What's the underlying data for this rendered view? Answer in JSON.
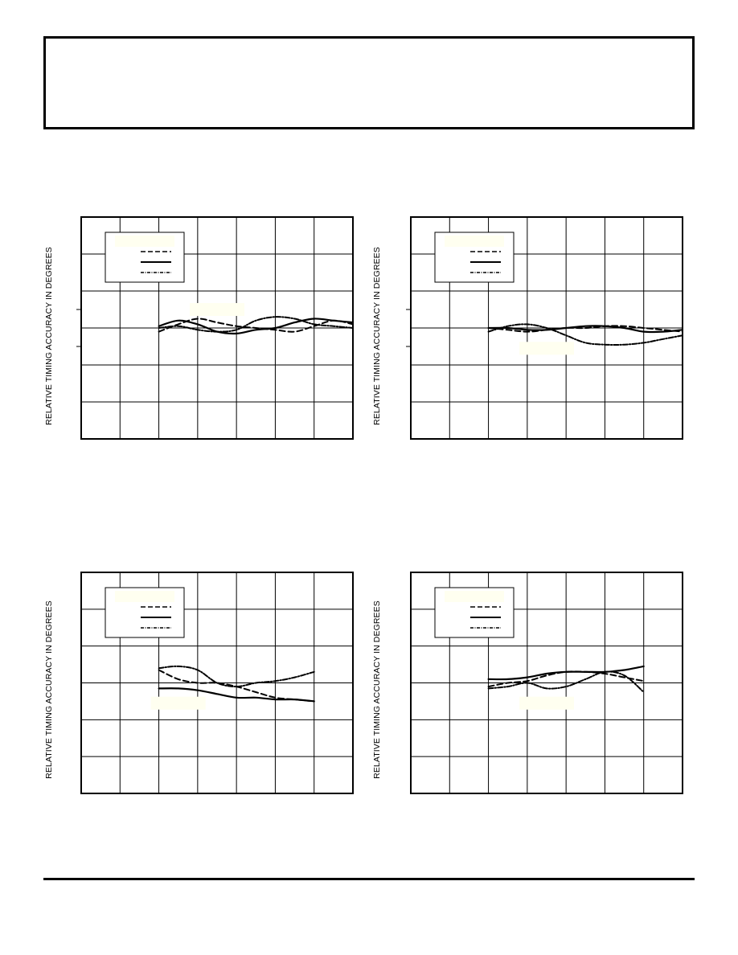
{
  "page": {
    "title_box": "",
    "footer": ""
  },
  "colors": {
    "ink": "#000000",
    "legend_fill": "#fffff0",
    "label_fill": "#fffff0"
  },
  "chart_data": [
    {
      "type": "line",
      "ylabel": "RELATIVE TIMING ACCURACY IN DEGREES",
      "grid": true,
      "legend_placement": "top-left",
      "xlim": [
        0,
        7
      ],
      "ylim": [
        -3,
        3
      ],
      "x_divisions": 7,
      "y_divisions": 6,
      "series": [
        {
          "style": "dashed",
          "x": [
            2,
            2.5,
            3,
            3.5,
            4,
            4.5,
            5,
            5.5,
            6,
            6.5,
            7
          ],
          "y": [
            -0.1,
            0.1,
            0.25,
            0.15,
            0.05,
            0.0,
            -0.05,
            -0.1,
            0.05,
            0.2,
            0.1
          ]
        },
        {
          "style": "solid",
          "x": [
            2,
            2.5,
            3,
            3.5,
            4,
            4.5,
            5,
            5.5,
            6,
            6.5,
            7
          ],
          "y": [
            0.05,
            0.2,
            0.1,
            -0.1,
            -0.15,
            -0.05,
            0.0,
            0.15,
            0.25,
            0.2,
            0.15
          ]
        },
        {
          "style": "dash-dot",
          "x": [
            2,
            2.5,
            3,
            3.5,
            4,
            4.5,
            5,
            5.5,
            6,
            6.5,
            7
          ],
          "y": [
            0.0,
            0.05,
            -0.05,
            -0.1,
            -0.05,
            0.2,
            0.3,
            0.25,
            0.1,
            0.05,
            0.0
          ]
        }
      ],
      "inline_label": {
        "x": 3.5,
        "y": 0.5,
        "text": ""
      }
    },
    {
      "type": "line",
      "ylabel": "RELATIVE TIMING ACCURACY IN DEGREES",
      "grid": true,
      "legend_placement": "top-left",
      "xlim": [
        0,
        7
      ],
      "ylim": [
        -3,
        3
      ],
      "x_divisions": 7,
      "y_divisions": 6,
      "series": [
        {
          "style": "dashed",
          "x": [
            2,
            2.5,
            3,
            3.5,
            4,
            4.5,
            5,
            5.5,
            6,
            6.5,
            7
          ],
          "y": [
            0.0,
            -0.05,
            -0.1,
            -0.05,
            0.0,
            0.0,
            0.05,
            0.05,
            0.0,
            -0.05,
            -0.1
          ]
        },
        {
          "style": "solid",
          "x": [
            2,
            2.5,
            3,
            3.5,
            4,
            4.5,
            5,
            5.5,
            6,
            6.5,
            7
          ],
          "y": [
            0.0,
            0.0,
            -0.05,
            -0.05,
            0.0,
            0.05,
            0.05,
            0.0,
            -0.1,
            -0.1,
            -0.05
          ]
        },
        {
          "style": "dash-dot",
          "x": [
            2,
            2.5,
            3,
            3.5,
            4,
            4.5,
            5,
            5.5,
            6,
            6.5,
            7
          ],
          "y": [
            -0.1,
            0.05,
            0.1,
            0.0,
            -0.2,
            -0.4,
            -0.45,
            -0.45,
            -0.4,
            -0.3,
            -0.2
          ]
        }
      ],
      "inline_label": {
        "x": 3.5,
        "y": -0.55,
        "text": ""
      }
    },
    {
      "type": "line",
      "ylabel": "RELATIVE TIMING ACCURACY IN DEGREES",
      "grid": true,
      "legend_placement": "top-left",
      "xlim": [
        0,
        7
      ],
      "ylim": [
        -3,
        3
      ],
      "x_divisions": 7,
      "y_divisions": 6,
      "series": [
        {
          "style": "dashed",
          "x": [
            2,
            2.5,
            3,
            3.5,
            4,
            4.5,
            5,
            5.5,
            6
          ],
          "y": [
            0.35,
            0.1,
            0.0,
            0.0,
            -0.1,
            -0.25,
            -0.4,
            -0.45,
            -0.5
          ]
        },
        {
          "style": "solid",
          "x": [
            2,
            2.5,
            3,
            3.5,
            4,
            4.5,
            5,
            5.5,
            6
          ],
          "y": [
            -0.15,
            -0.15,
            -0.2,
            -0.3,
            -0.4,
            -0.4,
            -0.45,
            -0.45,
            -0.5
          ]
        },
        {
          "style": "dash-dot",
          "x": [
            2,
            2.5,
            3,
            3.5,
            4,
            4.5,
            5,
            5.5,
            6
          ],
          "y": [
            0.4,
            0.45,
            0.35,
            0.0,
            -0.1,
            0.0,
            0.05,
            0.15,
            0.3
          ]
        }
      ],
      "inline_label": {
        "x": 2.5,
        "y": -0.55,
        "text": ""
      }
    },
    {
      "type": "line",
      "ylabel": "RELATIVE TIMING ACCURACY IN DEGREES",
      "grid": true,
      "legend_placement": "top-left",
      "xlim": [
        0,
        7
      ],
      "ylim": [
        -3,
        3
      ],
      "x_divisions": 7,
      "y_divisions": 6,
      "series": [
        {
          "style": "dashed",
          "x": [
            2,
            2.5,
            3,
            3.5,
            4,
            4.5,
            5,
            5.5,
            6
          ],
          "y": [
            -0.1,
            0.0,
            0.05,
            0.2,
            0.3,
            0.3,
            0.25,
            0.15,
            0.05
          ]
        },
        {
          "style": "solid",
          "x": [
            2,
            2.5,
            3,
            3.5,
            4,
            4.5,
            5,
            5.5,
            6
          ],
          "y": [
            0.1,
            0.1,
            0.15,
            0.25,
            0.3,
            0.3,
            0.3,
            0.35,
            0.45
          ]
        },
        {
          "style": "dash-dot",
          "x": [
            2,
            2.5,
            3,
            3.5,
            4,
            4.5,
            5,
            5.5,
            6
          ],
          "y": [
            -0.15,
            -0.1,
            0.0,
            -0.15,
            -0.1,
            0.1,
            0.3,
            0.2,
            -0.25
          ]
        }
      ],
      "inline_label": {
        "x": 3.5,
        "y": -0.55,
        "text": ""
      }
    }
  ]
}
